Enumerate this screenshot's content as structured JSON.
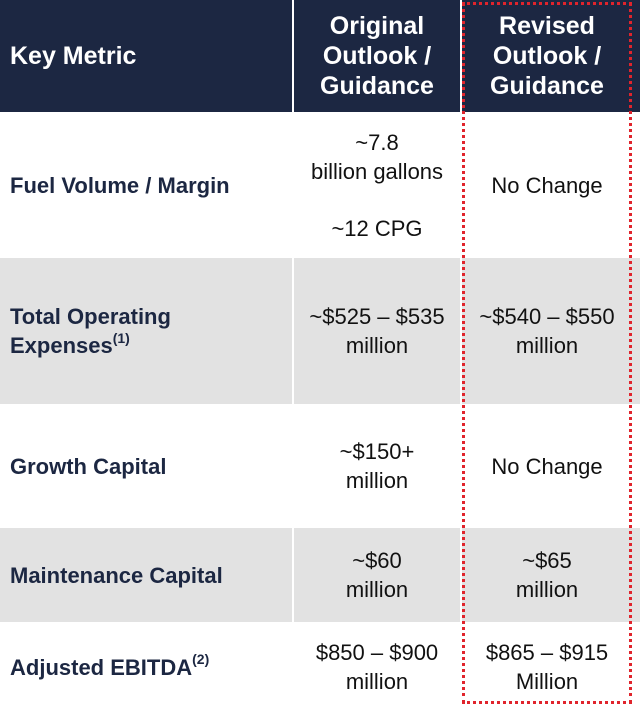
{
  "header": {
    "col1": "Key Metric",
    "col2_lines": [
      "Original",
      "Outlook /",
      "Guidance"
    ],
    "col3_lines": [
      "Revised",
      "Outlook /",
      "Guidance"
    ]
  },
  "rows": [
    {
      "metric": "Fuel Volume / Margin",
      "original_lines": [
        "~7.8",
        "billion gallons",
        "~12 CPG"
      ],
      "revised_lines": [
        "No Change"
      ]
    },
    {
      "metric_lines": [
        "Total Operating",
        "Expenses"
      ],
      "metric_sup": "(1)",
      "original_lines": [
        "~$525 – $535",
        "million"
      ],
      "revised_lines": [
        "~$540 – $550",
        "million"
      ]
    },
    {
      "metric": "Growth Capital",
      "original_lines": [
        "~$150+",
        "million"
      ],
      "revised_lines": [
        "No Change"
      ]
    },
    {
      "metric": "Maintenance Capital",
      "original_lines": [
        "~$60",
        "million"
      ],
      "revised_lines": [
        "~$65",
        "million"
      ]
    },
    {
      "metric": "Adjusted EBITDA",
      "metric_sup": "(2)",
      "original_lines": [
        "$850 – $900",
        "million"
      ],
      "revised_lines": [
        "$865 – $915",
        "Million"
      ]
    }
  ],
  "colors": {
    "header_bg": "#1c2742",
    "row_shade": "#e2e2e2",
    "highlight_border": "#e0242c"
  }
}
